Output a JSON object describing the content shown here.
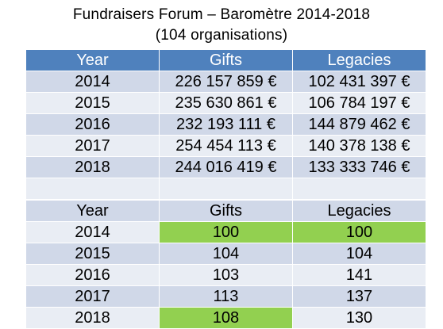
{
  "title": {
    "line1": "Fundraisers Forum – Baromètre 2014-2018",
    "line2": "(104 organisations)"
  },
  "amounts": {
    "headers": [
      "Year",
      "Gifts",
      "Legacies"
    ],
    "rows": [
      [
        "2014",
        "226 157 859 €",
        "102 431 397 €"
      ],
      [
        "2015",
        "235 630 861 €",
        "106 784 197 €"
      ],
      [
        "2016",
        "232 193 111 €",
        "144 879 462 €"
      ],
      [
        "2017",
        "254 454 113 €",
        "140 378 138 €"
      ],
      [
        "2018",
        "244 016 419 €",
        "133 333 746 €"
      ]
    ]
  },
  "index": {
    "headers": [
      "Year",
      "Gifts",
      "Legacies"
    ],
    "rows": [
      [
        "2014",
        "100",
        "100"
      ],
      [
        "2015",
        "104",
        "104"
      ],
      [
        "2016",
        "103",
        "141"
      ],
      [
        "2017",
        "113",
        "137"
      ],
      [
        "2018",
        "108",
        "130"
      ]
    ]
  },
  "colors": {
    "header": "#4f81bd",
    "row_dark": "#d0d8e8",
    "row_light": "#e9edf4",
    "highlight": "#92d050"
  }
}
